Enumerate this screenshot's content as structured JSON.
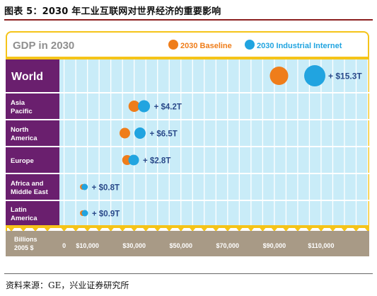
{
  "figure": {
    "caption": "图表 5：2030 年工业互联网对世界经济的重要影响",
    "source": "资料来源：GE，兴业证券研究所"
  },
  "colors": {
    "baseline": "#ef7d1a",
    "industrial": "#21a4e0",
    "regionPurple": "#6a1f6e",
    "plotBg": "#c9ecf8",
    "axisBand": "#a89a86",
    "frame": "#f5c419"
  },
  "chart_data": {
    "type": "scatter",
    "title": "GDP in 2030",
    "xlabel": "Billions 2005 $",
    "xlim": [
      -2000,
      130000
    ],
    "xticks": [
      0,
      10000,
      30000,
      50000,
      70000,
      90000,
      110000
    ],
    "xtick_labels": [
      "0",
      "$10,000",
      "$30,000",
      "$50,000",
      "$70,000",
      "$90,000",
      "$110,000"
    ],
    "legend": {
      "placement": "top-right",
      "entries": [
        "2030 Baseline",
        "2030 Industrial Internet"
      ]
    },
    "categories": [
      "World",
      "Asia Pacific",
      "North America",
      "Europe",
      "Africa and Middle East",
      "Latin America"
    ],
    "series": [
      {
        "name": "2030 Baseline",
        "values": [
          92000,
          30000,
          26000,
          27000,
          8000,
          8000
        ]
      },
      {
        "name": "2030 Industrial Internet",
        "values": [
          107300,
          34200,
          32500,
          29800,
          8800,
          8900
        ]
      }
    ],
    "annotations": [
      "+ $15.3T",
      "+ $4.2T",
      "+ $6.5T",
      "+ $2.8T",
      "+ $0.8T",
      "+ $0.9T"
    ],
    "grid": true
  }
}
